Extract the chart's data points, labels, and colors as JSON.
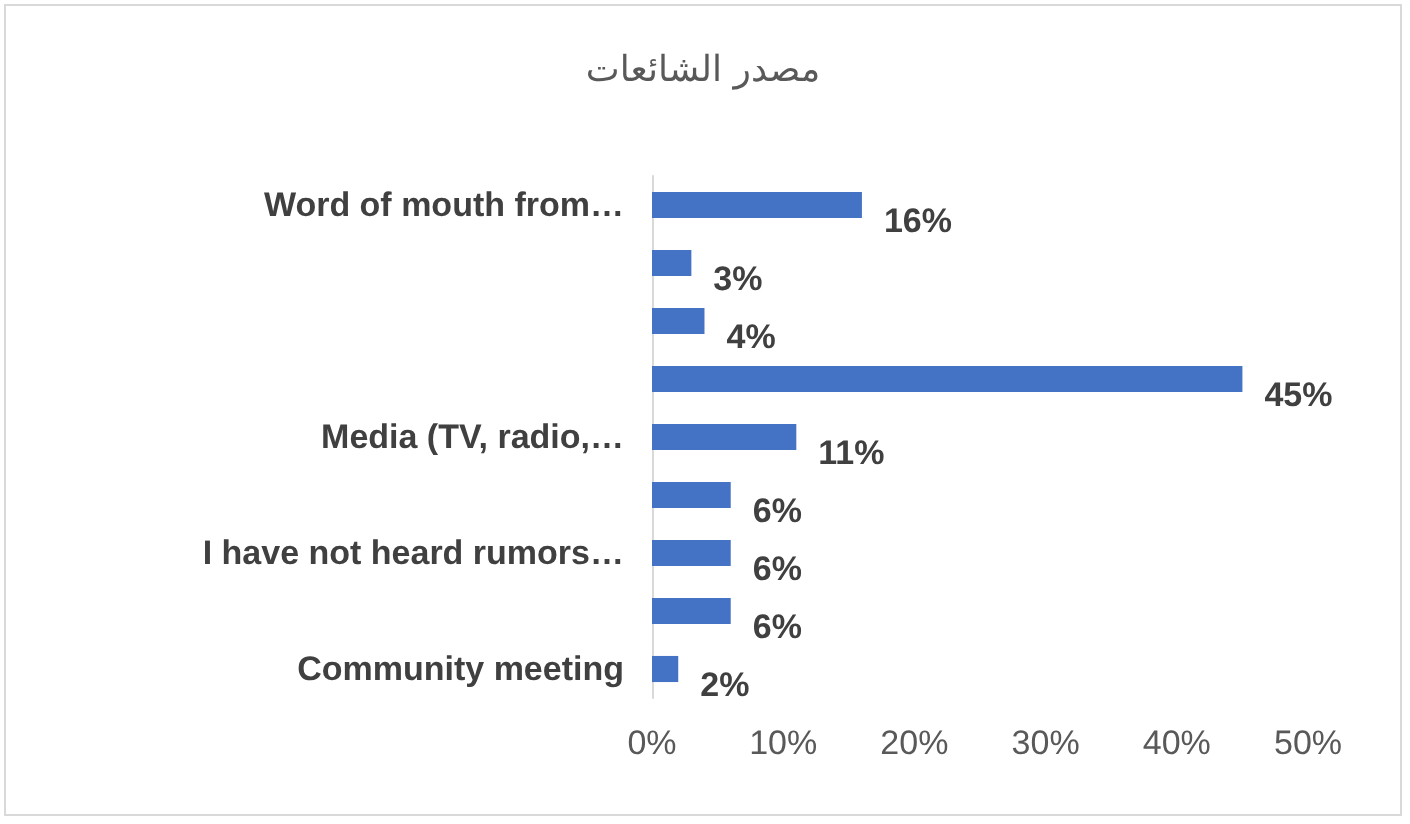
{
  "chart_data": {
    "type": "bar",
    "orientation": "horizontal",
    "title": "مصدر الشائعات",
    "categories": [
      "Word of mouth from…",
      null,
      null,
      null,
      "Media (TV, radio,…",
      null,
      "I have not heard rumors…",
      null,
      "Community meeting"
    ],
    "values": [
      16,
      3,
      4,
      45,
      11,
      6,
      6,
      6,
      2
    ],
    "value_labels": [
      "16%",
      "3%",
      "4%",
      "45%",
      "11%",
      "6%",
      "6%",
      "6%",
      "2%"
    ],
    "color": "#4472c4",
    "xlim": [
      0,
      50
    ],
    "xticks": [
      {
        "value": 0,
        "label": "0%"
      },
      {
        "value": 10,
        "label": "10%"
      },
      {
        "value": 20,
        "label": "20%"
      },
      {
        "value": 30,
        "label": "30%"
      },
      {
        "value": 40,
        "label": "40%"
      },
      {
        "value": 50,
        "label": "50%"
      }
    ],
    "grid": false
  }
}
